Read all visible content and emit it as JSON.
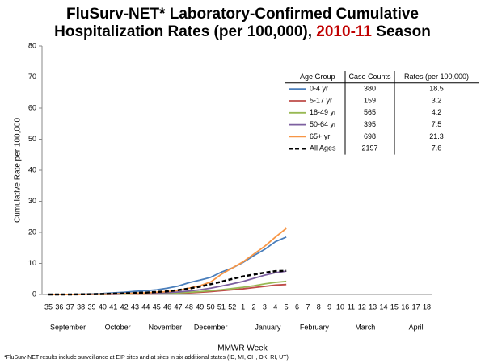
{
  "chart_data": {
    "type": "line",
    "title": {
      "line1": "FluSurv-NET* Laboratory-Confirmed Cumulative",
      "line2": "Hospitalization Rates (per 100,000),",
      "season": "2010-11",
      "season_suffix": "Season",
      "season_color": "#c00000"
    },
    "y_label": "Cumulative Rate per 100,000",
    "x_label": "MMWR Week",
    "footnote": "*FluSurv-NET results include surveillance at EIP sites and at sites in six additional states (ID, MI, OH, OK, RI, UT)",
    "categories": [
      "35",
      "36",
      "37",
      "38",
      "39",
      "40",
      "41",
      "42",
      "43",
      "44",
      "45",
      "46",
      "47",
      "48",
      "49",
      "50",
      "51",
      "52",
      "1",
      "2",
      "3",
      "4",
      "5",
      "6",
      "7",
      "8",
      "9",
      "10",
      "11",
      "12",
      "13",
      "14",
      "15",
      "16",
      "17",
      "18"
    ],
    "months": [
      "September",
      "October",
      "November",
      "December",
      "January",
      "February",
      "March",
      "April"
    ],
    "ylim": [
      0,
      80
    ],
    "yticks": [
      0,
      10,
      20,
      30,
      40,
      50,
      60,
      70,
      80
    ],
    "legend_headers": [
      "Age Group",
      "Case Counts",
      "Rates (per 100,000)"
    ],
    "series": [
      {
        "name": "0-4 yr",
        "color": "#4a7ebb",
        "dash": false,
        "case_count": 380,
        "rate": 18.5,
        "values": [
          0,
          0,
          0,
          0.1,
          0.2,
          0.3,
          0.5,
          0.7,
          1.0,
          1.2,
          1.5,
          2.0,
          2.7,
          3.8,
          4.6,
          5.5,
          7.2,
          8.5,
          10.3,
          12.5,
          14.5,
          17,
          18.5,
          null,
          null,
          null,
          null,
          null,
          null,
          null,
          null,
          null,
          null,
          null,
          null,
          null
        ]
      },
      {
        "name": "5-17 yr",
        "color": "#be4b48",
        "dash": false,
        "case_count": 159,
        "rate": 3.2,
        "values": [
          0,
          0,
          0,
          0,
          0,
          0,
          0.05,
          0.1,
          0.1,
          0.15,
          0.2,
          0.3,
          0.4,
          0.5,
          0.7,
          0.9,
          1.2,
          1.5,
          1.8,
          2.2,
          2.6,
          3.0,
          3.2,
          null,
          null,
          null,
          null,
          null,
          null,
          null,
          null,
          null,
          null,
          null,
          null,
          null
        ]
      },
      {
        "name": "18-49 yr",
        "color": "#98b954",
        "dash": false,
        "case_count": 565,
        "rate": 4.2,
        "values": [
          0,
          0,
          0,
          0,
          0,
          0.05,
          0.1,
          0.1,
          0.2,
          0.2,
          0.3,
          0.4,
          0.5,
          0.7,
          0.9,
          1.2,
          1.5,
          1.9,
          2.3,
          2.8,
          3.4,
          3.9,
          4.2,
          null,
          null,
          null,
          null,
          null,
          null,
          null,
          null,
          null,
          null,
          null,
          null,
          null
        ]
      },
      {
        "name": "50-64 yr",
        "color": "#7d60a0",
        "dash": false,
        "case_count": 395,
        "rate": 7.5,
        "values": [
          0,
          0,
          0,
          0,
          0,
          0.1,
          0.1,
          0.2,
          0.3,
          0.4,
          0.5,
          0.6,
          0.8,
          1.1,
          1.5,
          2.0,
          2.7,
          3.4,
          4.2,
          5.2,
          6.2,
          7.0,
          7.5,
          null,
          null,
          null,
          null,
          null,
          null,
          null,
          null,
          null,
          null,
          null,
          null,
          null
        ]
      },
      {
        "name": "65+ yr",
        "color": "#f79646",
        "dash": false,
        "case_count": 698,
        "rate": 21.3,
        "values": [
          0,
          0,
          0,
          0,
          0.1,
          0.1,
          0.2,
          0.3,
          0.4,
          0.5,
          0.7,
          0.9,
          1.3,
          2.0,
          2.8,
          4.0,
          6.5,
          8.5,
          10.5,
          13,
          15.5,
          18.5,
          21.3,
          null,
          null,
          null,
          null,
          null,
          null,
          null,
          null,
          null,
          null,
          null,
          null,
          null
        ]
      },
      {
        "name": "All Ages",
        "color": "#000000",
        "dash": true,
        "case_count": 2197,
        "rate": 7.6,
        "values": [
          0,
          0,
          0,
          0.05,
          0.1,
          0.15,
          0.25,
          0.35,
          0.5,
          0.6,
          0.8,
          1.0,
          1.4,
          1.9,
          2.5,
          3.3,
          4.1,
          5.0,
          5.8,
          6.4,
          7.0,
          7.5,
          7.6,
          null,
          null,
          null,
          null,
          null,
          null,
          null,
          null,
          null,
          null,
          null,
          null,
          null
        ]
      }
    ]
  }
}
